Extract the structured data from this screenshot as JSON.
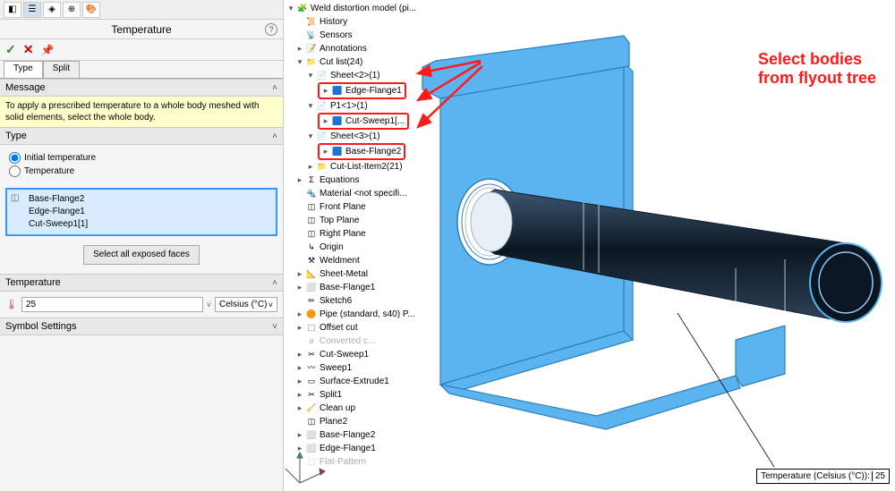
{
  "colors": {
    "accent": "#3399ff",
    "highlight_bg": "#d9ecff",
    "message_bg": "#ffffcc",
    "callout_red": "#ff1a1a",
    "model_fill": "#5bb4f0",
    "model_stroke": "#2a7fb8",
    "pipe_dark": "#1a2f40"
  },
  "panel": {
    "title": "Temperature",
    "tabs": {
      "type": "Type",
      "split": "Split"
    },
    "message": {
      "header": "Message",
      "body": "To apply a prescribed temperature to a whole body meshed with solid elements, select the whole body."
    },
    "type": {
      "header": "Type",
      "option1": "Initial temperature",
      "option2": "Temperature",
      "selected": "option1",
      "selection_items": [
        "Base-Flange2",
        "Edge-Flange1",
        "Cut-Sweep1[1]"
      ],
      "select_all_btn": "Select all exposed\nfaces"
    },
    "temperature": {
      "header": "Temperature",
      "value": "25",
      "unit": "Celsius (°C)"
    },
    "symbol": {
      "header": "Symbol Settings"
    }
  },
  "tree": {
    "root": "Weld distortion model (pi...",
    "items": [
      {
        "level": 1,
        "twisty": "",
        "icon": "📜",
        "label": "History"
      },
      {
        "level": 1,
        "twisty": "",
        "icon": "📡",
        "label": "Sensors"
      },
      {
        "level": 1,
        "twisty": "▸",
        "icon": "📝",
        "label": "Annotations"
      },
      {
        "level": 1,
        "twisty": "▾",
        "icon": "📁",
        "label": "Cut list(24)"
      },
      {
        "level": 2,
        "twisty": "▾",
        "icon": "📄",
        "label": "Sheet<2>(1)"
      },
      {
        "level": 3,
        "twisty": "▸",
        "icon": "🟦",
        "label": "Edge-Flange1",
        "hl": true
      },
      {
        "level": 2,
        "twisty": "▾",
        "icon": "📄",
        "label": "P1<1>(1)"
      },
      {
        "level": 3,
        "twisty": "▸",
        "icon": "🟦",
        "label": "Cut-Sweep1[...",
        "hl": true
      },
      {
        "level": 2,
        "twisty": "▾",
        "icon": "📄",
        "label": "Sheet<3>(1)"
      },
      {
        "level": 3,
        "twisty": "▸",
        "icon": "🟦",
        "label": "Base-Flange2",
        "hl": true
      },
      {
        "level": 2,
        "twisty": "▸",
        "icon": "📁",
        "label": "Cut-List-Item2(21)"
      },
      {
        "level": 1,
        "twisty": "▸",
        "icon": "Σ",
        "label": "Equations"
      },
      {
        "level": 1,
        "twisty": "",
        "icon": "🔩",
        "label": "Material <not specifi..."
      },
      {
        "level": 1,
        "twisty": "",
        "icon": "◫",
        "label": "Front Plane"
      },
      {
        "level": 1,
        "twisty": "",
        "icon": "◫",
        "label": "Top Plane"
      },
      {
        "level": 1,
        "twisty": "",
        "icon": "◫",
        "label": "Right Plane"
      },
      {
        "level": 1,
        "twisty": "",
        "icon": "↳",
        "label": "Origin"
      },
      {
        "level": 1,
        "twisty": "",
        "icon": "⚒",
        "label": "Weldment"
      },
      {
        "level": 1,
        "twisty": "▸",
        "icon": "📐",
        "label": "Sheet-Metal"
      },
      {
        "level": 1,
        "twisty": "▸",
        "icon": "⬜",
        "label": "Base-Flange1"
      },
      {
        "level": 1,
        "twisty": "",
        "icon": "✏",
        "label": "Sketch6"
      },
      {
        "level": 1,
        "twisty": "▸",
        "icon": "🟠",
        "label": "Pipe (standard, s40) P..."
      },
      {
        "level": 1,
        "twisty": "▸",
        "icon": "⬚",
        "label": "Offset cut"
      },
      {
        "level": 1,
        "twisty": "",
        "icon": "⌀",
        "label": "Converted c...",
        "dim": true
      },
      {
        "level": 1,
        "twisty": "▸",
        "icon": "✂",
        "label": "Cut-Sweep1"
      },
      {
        "level": 1,
        "twisty": "▸",
        "icon": "〰",
        "label": "Sweep1"
      },
      {
        "level": 1,
        "twisty": "▸",
        "icon": "▭",
        "label": "Surface-Extrude1"
      },
      {
        "level": 1,
        "twisty": "▸",
        "icon": "✂",
        "label": "Split1"
      },
      {
        "level": 1,
        "twisty": "▸",
        "icon": "🧹",
        "label": "Clean up"
      },
      {
        "level": 1,
        "twisty": "",
        "icon": "◫",
        "label": "Plane2"
      },
      {
        "level": 1,
        "twisty": "▸",
        "icon": "⬜",
        "label": "Base-Flange2"
      },
      {
        "level": 1,
        "twisty": "▸",
        "icon": "⬜",
        "label": "Edge-Flange1"
      },
      {
        "level": 1,
        "twisty": "",
        "icon": "⬚",
        "label": "Flat-Pattern",
        "dim": true
      }
    ]
  },
  "callout": "Select bodies from flyout tree",
  "status": {
    "label": "Temperature (Celsius (°C)):",
    "value": "25"
  }
}
